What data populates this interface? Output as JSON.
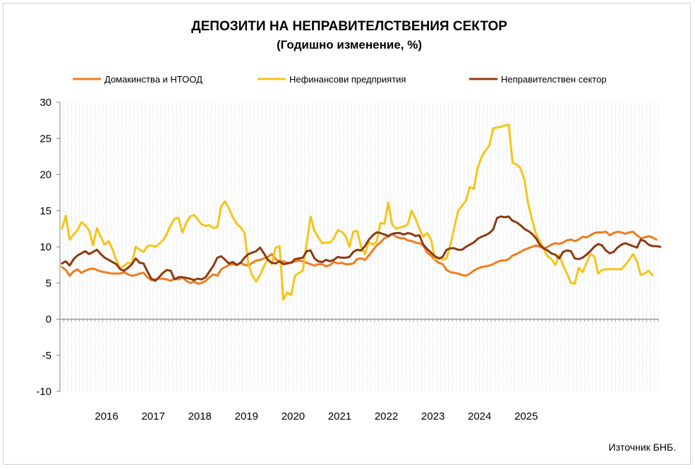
{
  "chart_data": {
    "type": "line",
    "title": "ДЕПОЗИТИ НА НЕПРАВИТЕЛСТВЕНИЯ  СЕКТОР",
    "subtitle": "(Годишно  изменение, %)",
    "source": "Източник БНБ.",
    "ylim": [
      -10,
      30
    ],
    "y_ticks": [
      "30",
      "25",
      "20",
      "15",
      "10",
      "5",
      "0",
      "-5",
      "-10"
    ],
    "x_tick_labels": [
      "2016",
      "2017",
      "2018",
      "2019",
      "2020",
      "2021",
      "2022",
      "2023",
      "2024",
      "2025"
    ],
    "x_start": "2015-07",
    "x_end": "2025-03",
    "grid": "vertical monthly dotted lines",
    "legend_position": "top",
    "series": [
      {
        "name": "Домакинства и НТООД",
        "color": "#F07C1E",
        "values": [
          7.2,
          6.8,
          6.0,
          6.6,
          6.9,
          6.4,
          6.7,
          6.9,
          7.0,
          6.8,
          6.6,
          6.5,
          6.4,
          6.3,
          6.3,
          6.3,
          6.5,
          6.2,
          6.0,
          6.1,
          6.3,
          6.4,
          5.8,
          5.4,
          5.5,
          5.6,
          5.6,
          5.5,
          5.3,
          5.6,
          5.5,
          5.8,
          5.3,
          5.0,
          5.2,
          4.9,
          5.0,
          5.3,
          5.8,
          6.2,
          6.0,
          6.9,
          7.2,
          7.5,
          7.6,
          7.5,
          7.8,
          7.5,
          7.4,
          7.8,
          8.1,
          8.2,
          8.4,
          8.6,
          9.0,
          8.3,
          8.0,
          8.0,
          7.8,
          7.8,
          8.0,
          8.1,
          8.0,
          7.8,
          7.6,
          7.4,
          7.6,
          7.6,
          7.3,
          7.5,
          7.9,
          7.7,
          7.8,
          7.6,
          7.6,
          7.7,
          8.3,
          8.4,
          8.2,
          8.8,
          9.5,
          10.2,
          10.6,
          11.2,
          11.4,
          11.8,
          11.4,
          11.2,
          11.2,
          10.9,
          10.8,
          10.6,
          10.5,
          10.2,
          9.2,
          8.8,
          8.2,
          7.8,
          7.6,
          6.8,
          6.5,
          6.4,
          6.3,
          6.1,
          6.0,
          6.3,
          6.7,
          7.0,
          7.2,
          7.3,
          7.4,
          7.6,
          7.9,
          8.1,
          8.1,
          8.3,
          8.8,
          9.0,
          9.3,
          9.6,
          9.8,
          10.0,
          10.2,
          10.0,
          9.8,
          10.0,
          10.3,
          10.5,
          10.4,
          10.6,
          10.9,
          11.0,
          10.8,
          11.0,
          11.4,
          11.3,
          11.6,
          11.9,
          12.0,
          12.0,
          12.1,
          11.6,
          11.9,
          12.1,
          12.0,
          11.8,
          12.0,
          12.1,
          11.6,
          11.2,
          11.3,
          11.5,
          11.3,
          11.0
        ]
      },
      {
        "name": "Нефинансови предприятия",
        "color": "#F5C518",
        "values": [
          12.5,
          14.3,
          11.0,
          11.7,
          12.3,
          13.4,
          13.0,
          12.3,
          10.2,
          12.6,
          11.4,
          10.3,
          10.8,
          9.7,
          8.2,
          7.0,
          7.4,
          7.8,
          7.7,
          10.0,
          9.6,
          9.3,
          10.1,
          10.2,
          10.0,
          10.4,
          10.9,
          11.8,
          13.0,
          13.9,
          14.0,
          12.0,
          13.3,
          14.2,
          14.4,
          13.8,
          13.1,
          12.9,
          13.0,
          12.6,
          12.7,
          15.6,
          16.3,
          15.3,
          14.1,
          13.2,
          12.7,
          11.9,
          7.6,
          6.0,
          5.2,
          6.1,
          7.3,
          8.3,
          7.6,
          9.9,
          10.1,
          2.7,
          3.7,
          3.3,
          6.0,
          6.4,
          6.7,
          10.5,
          14.2,
          12.2,
          11.3,
          10.5,
          10.6,
          10.6,
          11.2,
          12.3,
          12.1,
          11.5,
          10.0,
          12.1,
          12.2,
          10.0,
          9.0,
          10.7,
          10.3,
          10.7,
          13.3,
          13.2,
          16.1,
          13.1,
          12.5,
          12.7,
          12.8,
          13.1,
          15.0,
          13.9,
          12.5,
          11.4,
          11.9,
          11.0,
          8.3,
          8.5,
          8.2,
          8.4,
          10.3,
          12.7,
          15.0,
          15.7,
          16.4,
          18.3,
          18.0,
          20.9,
          22.4,
          23.3,
          24.0,
          26.4,
          26.5,
          26.6,
          26.8,
          26.9,
          21.6,
          21.4,
          20.9,
          19.4,
          16.0,
          13.8,
          11.8,
          10.8,
          9.7,
          8.7,
          8.3,
          7.5,
          8.9,
          7.4,
          6.3,
          5.0,
          4.9,
          7.1,
          6.5,
          7.7,
          9.0,
          8.7,
          6.3,
          6.8,
          6.9,
          6.9,
          6.9,
          6.9,
          6.9,
          7.5,
          8.2,
          9.0,
          8.0,
          6.1,
          6.3,
          6.7,
          6.1
        ]
      },
      {
        "name": "Неправителствен сектор",
        "color": "#8B3A12",
        "values": [
          7.7,
          8.0,
          7.4,
          8.3,
          8.8,
          9.1,
          9.4,
          9.0,
          9.3,
          9.6,
          9.0,
          8.5,
          8.2,
          7.9,
          7.6,
          6.9,
          6.7,
          7.1,
          7.6,
          8.4,
          7.8,
          7.7,
          6.6,
          5.6,
          5.3,
          5.8,
          6.4,
          6.8,
          6.7,
          5.5,
          5.8,
          5.8,
          5.7,
          5.6,
          5.4,
          5.6,
          5.5,
          5.8,
          6.6,
          7.4,
          8.5,
          8.7,
          8.2,
          7.7,
          7.9,
          7.5,
          7.8,
          8.5,
          9.0,
          9.2,
          9.4,
          9.9,
          9.1,
          8.2,
          7.8,
          7.7,
          8.0,
          7.6,
          7.7,
          7.8,
          8.3,
          8.4,
          8.5,
          9.4,
          9.5,
          8.4,
          8.0,
          7.9,
          8.2,
          8.0,
          8.2,
          8.6,
          8.5,
          8.5,
          8.6,
          9.3,
          9.6,
          9.5,
          10.1,
          11.0,
          11.6,
          12.0,
          11.9,
          11.7,
          11.5,
          11.8,
          11.9,
          11.9,
          11.7,
          11.9,
          11.8,
          11.5,
          11.6,
          10.3,
          9.7,
          9.2,
          8.7,
          8.4,
          8.6,
          9.6,
          9.8,
          9.8,
          9.6,
          9.6,
          10.0,
          10.3,
          10.6,
          11.1,
          11.4,
          11.6,
          11.9,
          12.4,
          14.0,
          14.2,
          14.1,
          14.2,
          13.6,
          13.4,
          13.0,
          12.5,
          12.2,
          11.8,
          11.2,
          10.3,
          9.8,
          9.5,
          9.1,
          8.9,
          8.4,
          9.3,
          9.5,
          9.4,
          8.4,
          8.3,
          8.5,
          8.9,
          9.4,
          10.0,
          10.4,
          10.2,
          9.5,
          9.1,
          9.3,
          9.9,
          10.3,
          10.5,
          10.3,
          10.1,
          9.9,
          11.0,
          10.8,
          10.3,
          10.1,
          10.1,
          10.0
        ]
      }
    ]
  }
}
